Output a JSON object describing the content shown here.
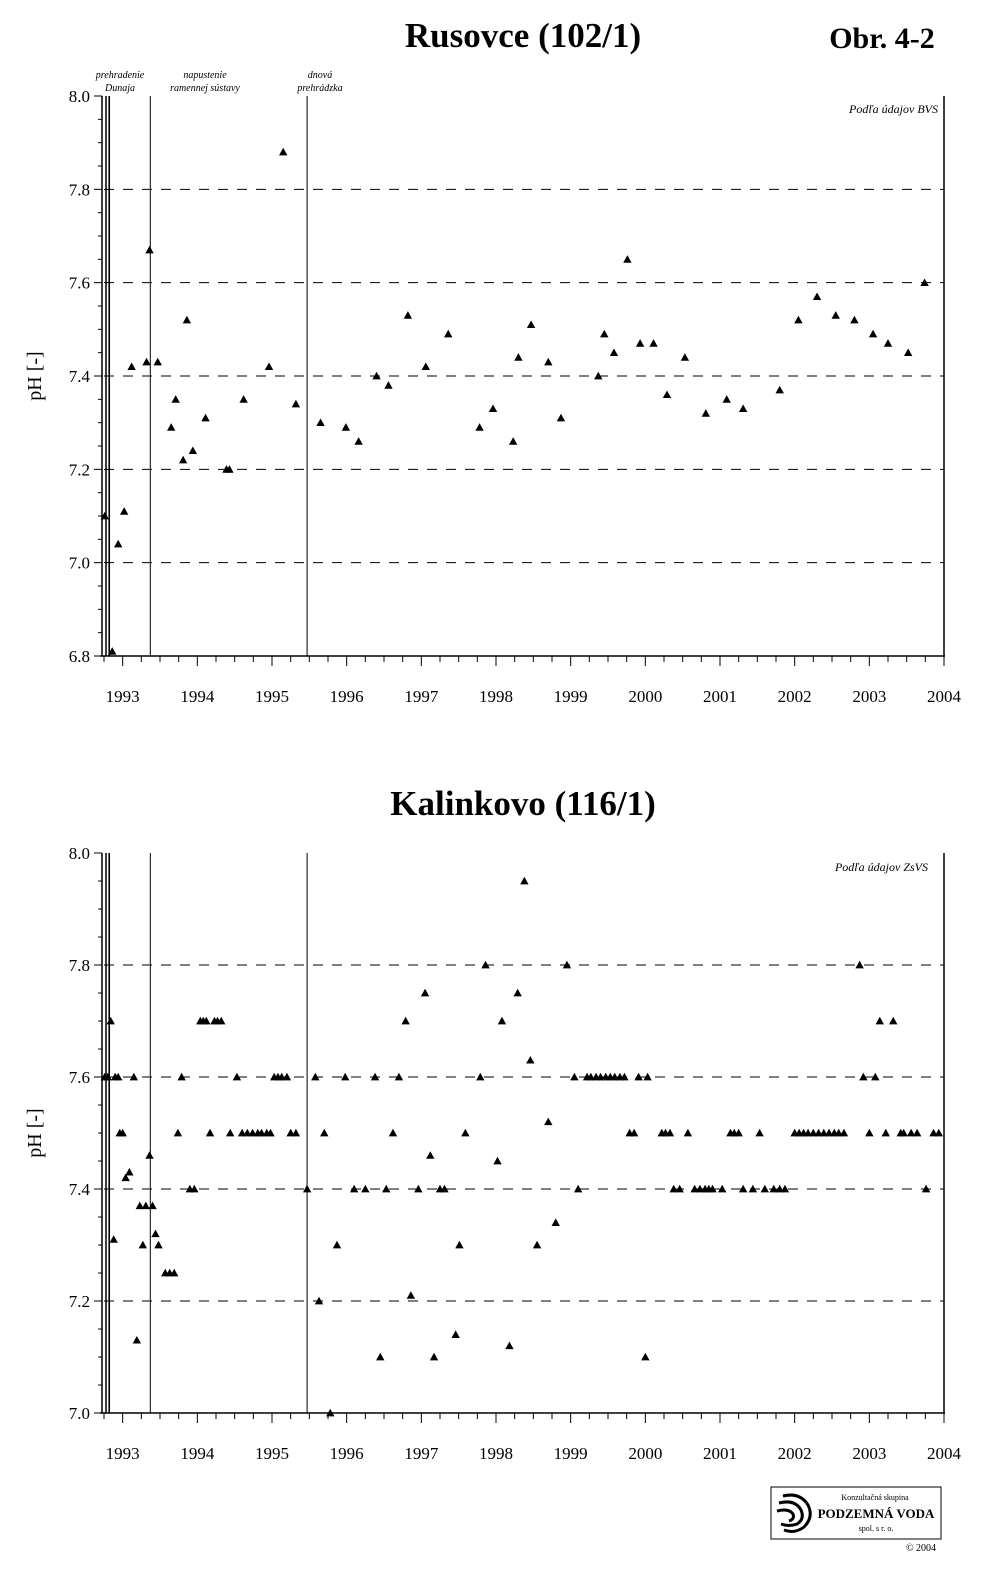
{
  "figure_label": "Obr. 4-2",
  "logo": {
    "line1": "Konzultačná skupina",
    "line2": "PODZEMNÁ VODA",
    "line3": "spol. s r. o.",
    "copyright": "© 2004"
  },
  "events": [
    {
      "name": "prehradenie Dunaja",
      "lines": [
        "prehradenie",
        "Dunaja"
      ],
      "x": 1992.82
    },
    {
      "name": "napustenie ramennej sústavy",
      "lines": [
        "napustenie",
        "ramennej sústavy"
      ],
      "x": 1993.37
    },
    {
      "name": "dnová prehrádzka",
      "lines": [
        "dnová",
        "prehrádzka"
      ],
      "x": 1995.47
    }
  ],
  "chart_data": [
    {
      "type": "scatter",
      "title": "Rusovce (102/1)",
      "ylabel": "pH [-]",
      "xlabel": "",
      "source_note": "Podľa údajov BVS",
      "xlim": [
        1992.75,
        2004.0
      ],
      "ylim": [
        6.8,
        8.0
      ],
      "x_ticks": [
        1993,
        1994,
        1995,
        1996,
        1997,
        1998,
        1999,
        2000,
        2001,
        2002,
        2003,
        2004
      ],
      "y_ticks": [
        "6.8",
        "7.0",
        "7.2",
        "7.4",
        "7.6",
        "7.8",
        "8.0"
      ],
      "grid": "dashed horizontal at 7.0, 7.2, 7.4, 7.6, 7.8",
      "marker": "filled triangle",
      "series": [
        {
          "points": [
            [
              1992.76,
              7.1
            ],
            [
              1992.86,
              6.81
            ],
            [
              1992.94,
              7.04
            ],
            [
              1993.02,
              7.11
            ],
            [
              1993.12,
              7.42
            ],
            [
              1993.32,
              7.43
            ],
            [
              1993.36,
              7.67
            ],
            [
              1993.47,
              7.43
            ],
            [
              1993.65,
              7.29
            ],
            [
              1993.71,
              7.35
            ],
            [
              1993.81,
              7.22
            ],
            [
              1993.86,
              7.52
            ],
            [
              1993.94,
              7.24
            ],
            [
              1994.11,
              7.31
            ],
            [
              1994.39,
              7.2
            ],
            [
              1994.43,
              7.2
            ],
            [
              1994.62,
              7.35
            ],
            [
              1994.96,
              7.42
            ],
            [
              1995.15,
              7.88
            ],
            [
              1995.32,
              7.34
            ],
            [
              1995.65,
              7.3
            ],
            [
              1995.99,
              7.29
            ],
            [
              1996.16,
              7.26
            ],
            [
              1996.4,
              7.4
            ],
            [
              1996.56,
              7.38
            ],
            [
              1996.82,
              7.53
            ],
            [
              1997.06,
              7.42
            ],
            [
              1997.36,
              7.49
            ],
            [
              1997.78,
              7.29
            ],
            [
              1997.96,
              7.33
            ],
            [
              1998.23,
              7.26
            ],
            [
              1998.3,
              7.44
            ],
            [
              1998.47,
              7.51
            ],
            [
              1998.7,
              7.43
            ],
            [
              1998.87,
              7.31
            ],
            [
              1999.37,
              7.4
            ],
            [
              1999.45,
              7.49
            ],
            [
              1999.58,
              7.45
            ],
            [
              1999.76,
              7.65
            ],
            [
              1999.93,
              7.47
            ],
            [
              2000.11,
              7.47
            ],
            [
              2000.29,
              7.36
            ],
            [
              2000.53,
              7.44
            ],
            [
              2000.81,
              7.32
            ],
            [
              2001.09,
              7.35
            ],
            [
              2001.31,
              7.33
            ],
            [
              2001.8,
              7.37
            ],
            [
              2002.05,
              7.52
            ],
            [
              2002.3,
              7.57
            ],
            [
              2002.55,
              7.53
            ],
            [
              2002.8,
              7.52
            ],
            [
              2003.05,
              7.49
            ],
            [
              2003.25,
              7.47
            ],
            [
              2003.52,
              7.45
            ],
            [
              2003.74,
              7.6
            ]
          ]
        }
      ]
    },
    {
      "type": "scatter",
      "title": "Kalinkovo (116/1)",
      "ylabel": "pH [-]",
      "xlabel": "",
      "source_note": "Podľa údajov ZsVS",
      "xlim": [
        1992.75,
        2004.0
      ],
      "ylim": [
        7.0,
        8.0
      ],
      "x_ticks": [
        1993,
        1994,
        1995,
        1996,
        1997,
        1998,
        1999,
        2000,
        2001,
        2002,
        2003,
        2004
      ],
      "y_ticks": [
        "7.0",
        "7.2",
        "7.4",
        "7.6",
        "7.8",
        "8.0"
      ],
      "grid": "dashed horizontal at 7.2, 7.4, 7.6, 7.8",
      "marker": "filled triangle",
      "series": [
        {
          "points": [
            [
              1992.76,
              7.6
            ],
            [
              1992.8,
              7.6
            ],
            [
              1992.84,
              7.7
            ],
            [
              1992.88,
              7.31
            ],
            [
              1992.9,
              7.6
            ],
            [
              1992.94,
              7.6
            ],
            [
              1992.96,
              7.5
            ],
            [
              1993.0,
              7.5
            ],
            [
              1993.04,
              7.42
            ],
            [
              1993.09,
              7.43
            ],
            [
              1993.15,
              7.6
            ],
            [
              1993.19,
              7.13
            ],
            [
              1993.23,
              7.37
            ],
            [
              1993.27,
              7.3
            ],
            [
              1993.31,
              7.37
            ],
            [
              1993.36,
              7.46
            ],
            [
              1993.4,
              7.37
            ],
            [
              1993.44,
              7.32
            ],
            [
              1993.48,
              7.3
            ],
            [
              1993.57,
              7.25
            ],
            [
              1993.63,
              7.25
            ],
            [
              1993.69,
              7.25
            ],
            [
              1993.74,
              7.5
            ],
            [
              1993.79,
              7.6
            ],
            [
              1993.9,
              7.4
            ],
            [
              1993.96,
              7.4
            ],
            [
              1994.04,
              7.7
            ],
            [
              1994.08,
              7.7
            ],
            [
              1994.12,
              7.7
            ],
            [
              1994.17,
              7.5
            ],
            [
              1994.23,
              7.7
            ],
            [
              1994.27,
              7.7
            ],
            [
              1994.32,
              7.7
            ],
            [
              1994.44,
              7.5
            ],
            [
              1994.53,
              7.6
            ],
            [
              1994.6,
              7.5
            ],
            [
              1994.67,
              7.5
            ],
            [
              1994.74,
              7.5
            ],
            [
              1994.81,
              7.5
            ],
            [
              1994.86,
              7.5
            ],
            [
              1994.93,
              7.5
            ],
            [
              1994.98,
              7.5
            ],
            [
              1995.03,
              7.6
            ],
            [
              1995.08,
              7.6
            ],
            [
              1995.13,
              7.6
            ],
            [
              1995.2,
              7.6
            ],
            [
              1995.25,
              7.5
            ],
            [
              1995.32,
              7.5
            ],
            [
              1995.47,
              7.4
            ],
            [
              1995.58,
              7.6
            ],
            [
              1995.63,
              7.2
            ],
            [
              1995.7,
              7.5
            ],
            [
              1995.78,
              7.0
            ],
            [
              1995.87,
              7.3
            ],
            [
              1995.98,
              7.6
            ],
            [
              2000.0,
              7.1
            ],
            [
              1996.1,
              7.4
            ],
            [
              1996.25,
              7.4
            ],
            [
              1996.38,
              7.6
            ],
            [
              1996.45,
              7.1
            ],
            [
              1996.53,
              7.4
            ],
            [
              1996.62,
              7.5
            ],
            [
              1996.7,
              7.6
            ],
            [
              1996.79,
              7.7
            ],
            [
              1996.86,
              7.21
            ],
            [
              1996.96,
              7.4
            ],
            [
              1997.05,
              7.75
            ],
            [
              1997.12,
              7.46
            ],
            [
              1997.17,
              7.1
            ],
            [
              1997.25,
              7.4
            ],
            [
              1997.31,
              7.4
            ],
            [
              1997.46,
              7.14
            ],
            [
              1997.51,
              7.3
            ],
            [
              1997.59,
              7.5
            ],
            [
              1997.79,
              7.6
            ],
            [
              1997.86,
              7.8
            ],
            [
              1998.02,
              7.45
            ],
            [
              1998.08,
              7.7
            ],
            [
              1998.18,
              7.12
            ],
            [
              1998.29,
              7.75
            ],
            [
              1998.38,
              7.95
            ],
            [
              1998.46,
              7.63
            ],
            [
              1998.55,
              7.3
            ],
            [
              1998.7,
              7.52
            ],
            [
              1998.8,
              7.34
            ],
            [
              1998.95,
              7.8
            ],
            [
              1999.05,
              7.6
            ],
            [
              1999.1,
              7.4
            ],
            [
              1999.22,
              7.6
            ],
            [
              1999.27,
              7.6
            ],
            [
              1999.34,
              7.6
            ],
            [
              1999.4,
              7.6
            ],
            [
              1999.47,
              7.6
            ],
            [
              1999.53,
              7.6
            ],
            [
              1999.59,
              7.6
            ],
            [
              1999.66,
              7.6
            ],
            [
              1999.72,
              7.6
            ],
            [
              1999.79,
              7.5
            ],
            [
              1999.85,
              7.5
            ],
            [
              1999.91,
              7.6
            ],
            [
              2000.03,
              7.6
            ],
            [
              2000.22,
              7.5
            ],
            [
              2000.27,
              7.5
            ],
            [
              2000.33,
              7.5
            ],
            [
              2000.38,
              7.4
            ],
            [
              2000.46,
              7.4
            ],
            [
              2000.57,
              7.5
            ],
            [
              2000.66,
              7.4
            ],
            [
              2000.73,
              7.4
            ],
            [
              2000.8,
              7.4
            ],
            [
              2000.85,
              7.4
            ],
            [
              2000.9,
              7.4
            ],
            [
              2001.03,
              7.4
            ],
            [
              2001.14,
              7.5
            ],
            [
              2001.19,
              7.5
            ],
            [
              2001.25,
              7.5
            ],
            [
              2001.31,
              7.4
            ],
            [
              2001.44,
              7.4
            ],
            [
              2001.53,
              7.5
            ],
            [
              2001.6,
              7.4
            ],
            [
              2001.72,
              7.4
            ],
            [
              2001.8,
              7.4
            ],
            [
              2001.87,
              7.4
            ],
            [
              2002.0,
              7.5
            ],
            [
              2002.06,
              7.5
            ],
            [
              2002.12,
              7.5
            ],
            [
              2002.18,
              7.5
            ],
            [
              2002.25,
              7.5
            ],
            [
              2002.32,
              7.5
            ],
            [
              2002.39,
              7.5
            ],
            [
              2002.46,
              7.5
            ],
            [
              2002.53,
              7.5
            ],
            [
              2002.59,
              7.5
            ],
            [
              2002.66,
              7.5
            ],
            [
              2002.87,
              7.8
            ],
            [
              2002.92,
              7.6
            ],
            [
              2003.0,
              7.5
            ],
            [
              2003.08,
              7.6
            ],
            [
              2003.14,
              7.7
            ],
            [
              2003.22,
              7.5
            ],
            [
              2003.32,
              7.7
            ],
            [
              2003.42,
              7.5
            ],
            [
              2003.46,
              7.5
            ],
            [
              2003.56,
              7.5
            ],
            [
              2003.64,
              7.5
            ],
            [
              2003.76,
              7.4
            ],
            [
              2003.86,
              7.5
            ],
            [
              2003.93,
              7.5
            ]
          ]
        }
      ]
    }
  ]
}
